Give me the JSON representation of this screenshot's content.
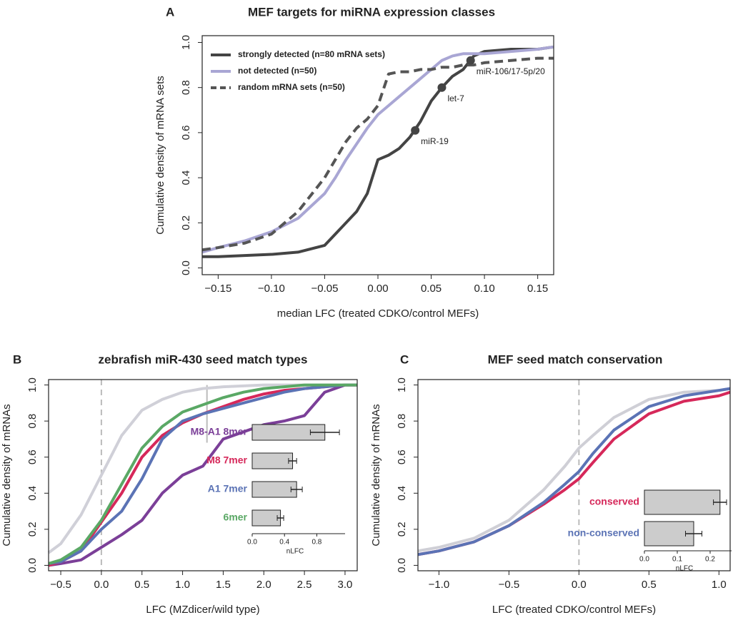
{
  "chart_data": [
    {
      "type": "line",
      "panel": "A",
      "title": "MEF targets for miRNA expression classes",
      "xlabel": "median LFC (treated CDKO/control MEFs)",
      "ylabel": "Cumulative density of mRNA sets",
      "xlim": [
        -0.165,
        0.165
      ],
      "xticks": [
        {
          "value": -0.15,
          "label": "−0.15"
        },
        {
          "value": -0.1,
          "label": "−0.10"
        },
        {
          "value": -0.05,
          "label": "−0.05"
        },
        {
          "value": 0,
          "label": "0.00"
        },
        0.05,
        {
          "value": 0.1,
          "label": "0.10"
        },
        0.15
      ],
      "ylim": [
        -0.03,
        1.03
      ],
      "yticks": [
        {
          "value": 0,
          "label": "0.0"
        },
        0.2,
        0.4,
        0.6,
        0.8,
        {
          "value": 1,
          "label": "1.0"
        }
      ],
      "legend": "upper left",
      "x": [
        -0.165,
        -0.15,
        -0.125,
        -0.1,
        -0.075,
        -0.05,
        -0.04,
        -0.03,
        -0.02,
        -0.01,
        0,
        0.01,
        0.02,
        0.03,
        0.04,
        0.05,
        0.06,
        0.07,
        0.08,
        0.09,
        0.1,
        0.125,
        0.15,
        0.165
      ],
      "series": [
        {
          "name": "strongly detected (n=80 mRNA sets)",
          "color": "#444444",
          "values": [
            0.05,
            0.05,
            0.055,
            0.06,
            0.07,
            0.1,
            0.15,
            0.2,
            0.25,
            0.33,
            0.48,
            0.5,
            0.53,
            0.58,
            0.65,
            0.74,
            0.8,
            0.85,
            0.88,
            0.94,
            0.96,
            0.97,
            0.97,
            0.98
          ]
        },
        {
          "name": "not detected (n=50)",
          "color": "#a9a6d4",
          "values": [
            0.07,
            0.09,
            0.12,
            0.16,
            0.22,
            0.33,
            0.4,
            0.48,
            0.55,
            0.62,
            0.68,
            0.72,
            0.76,
            0.8,
            0.84,
            0.88,
            0.92,
            0.94,
            0.95,
            0.95,
            0.95,
            0.96,
            0.97,
            0.98
          ]
        },
        {
          "name": "random mRNA sets (n=50)",
          "color": "#555555",
          "dash": true,
          "values": [
            0.08,
            0.09,
            0.11,
            0.15,
            0.25,
            0.4,
            0.48,
            0.56,
            0.62,
            0.66,
            0.72,
            0.86,
            0.87,
            0.87,
            0.88,
            0.88,
            0.89,
            0.89,
            0.9,
            0.9,
            0.91,
            0.92,
            0.93,
            0.93
          ]
        }
      ],
      "annotations": [
        {
          "label": "miR-19",
          "x": 0.035,
          "y": 0.61
        },
        {
          "label": "let-7",
          "x": 0.06,
          "y": 0.8
        },
        {
          "label": "miR-106/17-5p/20",
          "x": 0.087,
          "y": 0.92
        }
      ]
    },
    {
      "type": "line",
      "panel": "B",
      "title": "zebrafish miR-430 seed match types",
      "xlabel": "LFC (MZdicer/wild type)",
      "ylabel": "Cumulative density of mRNAs",
      "xlim": [
        -0.65,
        3.15
      ],
      "xticks": [
        {
          "value": -0.5,
          "label": "−0.5"
        },
        {
          "value": 0,
          "label": "0.0"
        },
        0.5,
        {
          "value": 1,
          "label": "1.0"
        },
        1.5,
        {
          "value": 2,
          "label": "2.0"
        },
        2.5,
        {
          "value": 3,
          "label": "3.0"
        }
      ],
      "ylim": [
        -0.03,
        1.03
      ],
      "yticks": [
        {
          "value": 0,
          "label": "0.0"
        },
        0.2,
        0.4,
        0.6,
        0.8,
        {
          "value": 1,
          "label": "1.0"
        }
      ],
      "legend": "inset",
      "vlines": [
        {
          "x": 0,
          "dash": true
        },
        {
          "x": 1.3,
          "y": [
            0.68,
            1
          ]
        }
      ],
      "x": [
        -0.65,
        -0.5,
        -0.25,
        0,
        0.25,
        0.5,
        0.75,
        1,
        1.25,
        1.5,
        1.75,
        2,
        2.25,
        2.5,
        2.75,
        3,
        3.15
      ],
      "series": [
        {
          "color": "#d0d0d8",
          "values": [
            0.07,
            0.12,
            0.28,
            0.5,
            0.72,
            0.86,
            0.92,
            0.96,
            0.98,
            0.99,
            0.995,
            1,
            1,
            1,
            1,
            1,
            1
          ]
        },
        {
          "name": "M8-A1 8mer",
          "color": "#7b3f98",
          "values": [
            0,
            0.01,
            0.03,
            0.1,
            0.17,
            0.25,
            0.4,
            0.5,
            0.55,
            0.7,
            0.74,
            0.78,
            0.8,
            0.83,
            0.96,
            1,
            1
          ]
        },
        {
          "name": "M8 7mer",
          "color": "#d6285a",
          "values": [
            0,
            0.02,
            0.08,
            0.24,
            0.4,
            0.6,
            0.72,
            0.79,
            0.84,
            0.88,
            0.92,
            0.95,
            0.97,
            0.98,
            0.99,
            1,
            1
          ]
        },
        {
          "name": "A1 7mer",
          "color": "#5b73b5",
          "values": [
            0.01,
            0.02,
            0.08,
            0.2,
            0.3,
            0.48,
            0.7,
            0.8,
            0.84,
            0.87,
            0.9,
            0.93,
            0.96,
            0.98,
            0.99,
            1,
            1
          ]
        },
        {
          "name": "6mer",
          "color": "#5aa865",
          "values": [
            0.01,
            0.03,
            0.1,
            0.25,
            0.45,
            0.65,
            0.77,
            0.85,
            0.89,
            0.93,
            0.96,
            0.98,
            0.99,
            1,
            1,
            1,
            1
          ]
        }
      ],
      "inset": {
        "type": "bar",
        "xlabel": "nLFC",
        "values": [
          0.9,
          0.5,
          0.55,
          0.35
        ],
        "errors": [
          0.18,
          0.05,
          0.07,
          0.04
        ],
        "xlim": [
          0,
          1.15
        ],
        "xticks": [
          {
            "value": 0,
            "label": "0.0"
          },
          0.4,
          0.8
        ],
        "color": "#cccccc"
      }
    },
    {
      "type": "line",
      "panel": "C",
      "title": "MEF seed match conservation",
      "xlabel": "LFC (treated CDKO/control MEFs)",
      "ylabel": "Cumulative density of mRNAs",
      "xlim": [
        -1.15,
        1.08
      ],
      "xticks": [
        {
          "value": -1,
          "label": "−1.0"
        },
        {
          "value": -0.5,
          "label": "−0.5"
        },
        {
          "value": 0,
          "label": "0.0"
        },
        0.5,
        {
          "value": 1,
          "label": "1.0"
        }
      ],
      "ylim": [
        -0.03,
        1.03
      ],
      "yticks": [
        {
          "value": 0,
          "label": "0.0"
        },
        0.2,
        0.4,
        0.6,
        0.8,
        {
          "value": 1,
          "label": "1.0"
        }
      ],
      "legend": "inset",
      "vlines": [
        {
          "x": 0,
          "dash": true
        }
      ],
      "x": [
        -1.15,
        -1,
        -0.75,
        -0.5,
        -0.25,
        -0.1,
        0,
        0.1,
        0.25,
        0.5,
        0.75,
        1,
        1.08
      ],
      "series": [
        {
          "color": "#cfcfd6",
          "values": [
            0.08,
            0.1,
            0.15,
            0.25,
            0.42,
            0.55,
            0.65,
            0.72,
            0.82,
            0.92,
            0.96,
            0.97,
            0.98
          ]
        },
        {
          "name": "conserved",
          "color": "#d6285a",
          "values": [
            0.06,
            0.08,
            0.13,
            0.22,
            0.34,
            0.42,
            0.48,
            0.57,
            0.7,
            0.84,
            0.91,
            0.94,
            0.96
          ]
        },
        {
          "name": "non-conserved",
          "color": "#5b73b5",
          "values": [
            0.06,
            0.08,
            0.13,
            0.22,
            0.35,
            0.45,
            0.52,
            0.62,
            0.75,
            0.88,
            0.94,
            0.97,
            0.98
          ]
        }
      ],
      "inset": {
        "type": "bar",
        "xlabel": "nLFC",
        "values": [
          0.23,
          0.15
        ],
        "errors": [
          0.02,
          0.025
        ],
        "xlim": [
          0,
          0.3
        ],
        "xticks": [
          {
            "value": 0,
            "label": "0.0"
          },
          0.1,
          0.2
        ],
        "color": "#cccccc"
      }
    }
  ]
}
